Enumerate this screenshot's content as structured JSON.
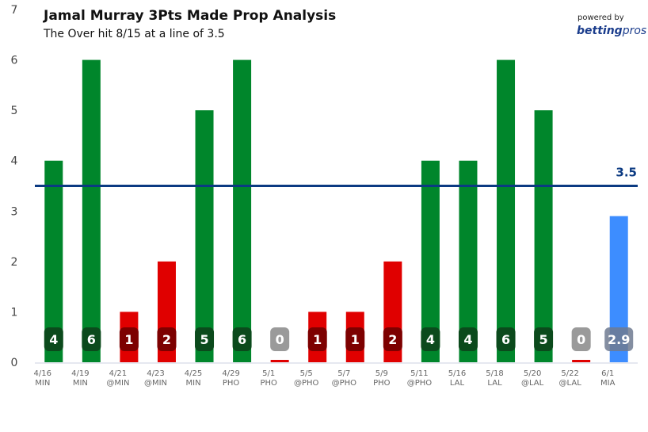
{
  "chart_data": {
    "type": "bar",
    "title": "Jamal Murray 3Pts Made Prop Analysis",
    "subtitle": "The Over hit 8/15 at a line of 3.5",
    "categories": [
      [
        "4/16",
        "MIN"
      ],
      [
        "4/19",
        "MIN"
      ],
      [
        "4/21",
        "@MIN"
      ],
      [
        "4/23",
        "@MIN"
      ],
      [
        "4/25",
        "MIN"
      ],
      [
        "4/29",
        "PHO"
      ],
      [
        "5/1",
        "PHO"
      ],
      [
        "5/5",
        "@PHO"
      ],
      [
        "5/7",
        "@PHO"
      ],
      [
        "5/9",
        "PHO"
      ],
      [
        "5/11",
        "@PHO"
      ],
      [
        "5/16",
        "LAL"
      ],
      [
        "5/18",
        "LAL"
      ],
      [
        "5/20",
        "@LAL"
      ],
      [
        "5/22",
        "@LAL"
      ],
      [
        "6/1",
        "MIA"
      ]
    ],
    "values": [
      4,
      6,
      1,
      2,
      5,
      6,
      0,
      1,
      1,
      2,
      4,
      4,
      6,
      5,
      0,
      2.9
    ],
    "labels": [
      "4",
      "6",
      "1",
      "2",
      "5",
      "6",
      "0",
      "1",
      "1",
      "2",
      "4",
      "4",
      "6",
      "5",
      "0",
      "2.9"
    ],
    "projection_index": 15,
    "line": {
      "value": 3.5,
      "label": "3.5",
      "color": "#0b3a82"
    },
    "ylim": [
      0,
      7
    ],
    "yticks": [
      "0",
      "1",
      "2",
      "3",
      "4",
      "5",
      "6",
      "7"
    ],
    "grid": false,
    "colors": {
      "over": "#00862b",
      "under": "#e00000",
      "projection": "#3d8dff",
      "over_badge": "#0b4a1c",
      "under_badge": "#7d0000",
      "zero_badge": "#9a9a9a",
      "proj_badge": "#6e7a90"
    }
  },
  "branding": {
    "powered_by": "powered by",
    "brand_bold": "betting",
    "brand_rest": "pros"
  }
}
